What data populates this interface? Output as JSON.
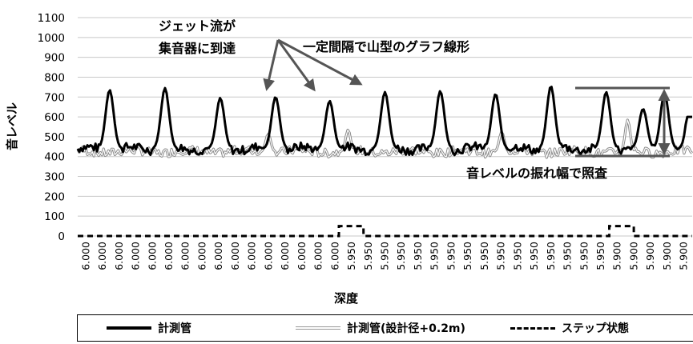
{
  "chart_data": {
    "type": "line",
    "ylabel": "音レベル",
    "xlabel": "深度",
    "ylim": [
      0,
      1100
    ],
    "yticks": [
      0,
      100,
      200,
      300,
      400,
      500,
      600,
      700,
      800,
      900,
      1000,
      1100
    ],
    "grid": "horizontal",
    "legend_position": "bottom",
    "categories": [
      "6.000",
      "6.000",
      "6.000",
      "6.000",
      "6.000",
      "6.000",
      "6.000",
      "6.000",
      "6.000",
      "6.000",
      "6.000",
      "6.000",
      "6.000",
      "6.000",
      "6.000",
      "6.000",
      "5.950",
      "5.950",
      "5.950",
      "5.950",
      "5.950",
      "5.950",
      "5.950",
      "5.950",
      "5.950",
      "5.950",
      "5.950",
      "5.950",
      "5.950",
      "5.950",
      "5.950",
      "5.950",
      "5.900",
      "5.900",
      "5.900",
      "5.900",
      "5.900"
    ],
    "series": [
      {
        "name": "計測管",
        "style": "thick-black",
        "baseline": 440,
        "peaks": [
          {
            "x": 0.052,
            "y": 735
          },
          {
            "x": 0.142,
            "y": 745
          },
          {
            "x": 0.232,
            "y": 695
          },
          {
            "x": 0.322,
            "y": 700
          },
          {
            "x": 0.41,
            "y": 680
          },
          {
            "x": 0.5,
            "y": 725
          },
          {
            "x": 0.59,
            "y": 730
          },
          {
            "x": 0.68,
            "y": 715
          },
          {
            "x": 0.77,
            "y": 755
          },
          {
            "x": 0.86,
            "y": 725
          },
          {
            "x": 0.92,
            "y": 640
          },
          {
            "x": 0.955,
            "y": 720
          },
          {
            "x": 0.998,
            "y": 730
          }
        ]
      },
      {
        "name": "計測管(設計径+0.2m)",
        "style": "gray-double",
        "baseline": 425
      },
      {
        "name": "ステップ状態",
        "style": "dashed",
        "values_note": "",
        "steps": [
          {
            "from": 0.0,
            "to": 0.425,
            "y": 0
          },
          {
            "from": 0.425,
            "to": 0.465,
            "y": 50
          },
          {
            "from": 0.465,
            "to": 0.865,
            "y": 0
          },
          {
            "from": 0.865,
            "to": 0.905,
            "y": 50
          },
          {
            "from": 0.905,
            "to": 1.0,
            "y": 0
          }
        ]
      }
    ],
    "annotations": [
      {
        "text": "ジェット流が",
        "id": "a1"
      },
      {
        "text": "集音器に到達",
        "id": "a2"
      },
      {
        "text": "一定間隔で山型のグラフ線形",
        "id": "a3"
      },
      {
        "text": "音レベルの振れ幅で照査",
        "id": "a4"
      }
    ]
  },
  "legend": [
    {
      "label": "計測管"
    },
    {
      "label": "計測管(設計径+0.2m)"
    },
    {
      "label": "ステップ状態"
    }
  ],
  "colors": {
    "primary": "#000000",
    "secondary": "#9a9a9a",
    "annotation": "#555555"
  }
}
